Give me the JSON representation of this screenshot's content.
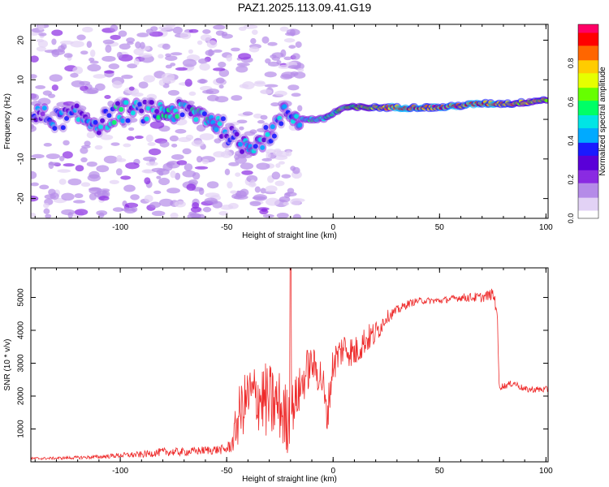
{
  "title": "PAZ1.2025.113.09.41.G19",
  "spectrogram": {
    "type": "heatmap",
    "xlabel": "Height of straight line (km)",
    "ylabel": "Frequency (Hz)",
    "xlim": [
      -142,
      101
    ],
    "ylim": [
      -25,
      24
    ],
    "xticks": [
      -100,
      -50,
      0,
      50,
      100
    ],
    "yticks": [
      -20,
      -10,
      0,
      10,
      20
    ],
    "colorbar_label": "Normalized spectral amplitude",
    "colorbar_ticks": [
      "0.0",
      "0.2",
      "0.4",
      "0.6",
      "0.8"
    ],
    "colorbar_tick_values": [
      0.0,
      0.2,
      0.4,
      0.6,
      0.8
    ],
    "colormap": [
      "#ffffff",
      "#e2d2f5",
      "#b58be8",
      "#8a2be2",
      "#5a00d8",
      "#1a1aff",
      "#00aaff",
      "#00e5e5",
      "#00ff66",
      "#66ff00",
      "#e6ff00",
      "#ffcc00",
      "#ff6600",
      "#ff0000",
      "#ff0066"
    ],
    "ridge": [
      {
        "x": -140,
        "y": 1,
        "a": 0.35
      },
      {
        "x": -130,
        "y": 0,
        "a": 0.4
      },
      {
        "x": -120,
        "y": 1,
        "a": 0.45
      },
      {
        "x": -110,
        "y": -1,
        "a": 0.45
      },
      {
        "x": -100,
        "y": 2,
        "a": 0.5
      },
      {
        "x": -90,
        "y": 2,
        "a": 0.45
      },
      {
        "x": -80,
        "y": 2,
        "a": 0.5
      },
      {
        "x": -70,
        "y": 2,
        "a": 0.5
      },
      {
        "x": -60,
        "y": 1,
        "a": 0.5
      },
      {
        "x": -52,
        "y": -2,
        "a": 0.5
      },
      {
        "x": -45,
        "y": -6,
        "a": 0.45
      },
      {
        "x": -38,
        "y": -6,
        "a": 0.5
      },
      {
        "x": -30,
        "y": -4,
        "a": 0.45
      },
      {
        "x": -22,
        "y": 2,
        "a": 0.4
      },
      {
        "x": -15,
        "y": 0,
        "a": 0.5
      },
      {
        "x": -5,
        "y": 0,
        "a": 0.6
      },
      {
        "x": 5,
        "y": 3,
        "a": 0.6
      },
      {
        "x": 15,
        "y": 3,
        "a": 0.7
      },
      {
        "x": 30,
        "y": 3,
        "a": 0.9
      },
      {
        "x": 50,
        "y": 3,
        "a": 0.95
      },
      {
        "x": 70,
        "y": 4,
        "a": 0.9
      },
      {
        "x": 85,
        "y": 4,
        "a": 0.8
      },
      {
        "x": 100,
        "y": 5,
        "a": 0.75
      }
    ]
  },
  "snr": {
    "type": "line",
    "xlabel": "Height of straight line (km)",
    "ylabel": "SNR (10 * v/v)",
    "xlim": [
      -142,
      101
    ],
    "ylim": [
      0,
      5900
    ],
    "xticks": [
      -100,
      -50,
      0,
      50,
      100
    ],
    "yticks": [
      1000,
      2000,
      3000,
      4000,
      5000
    ],
    "color": "#ee2a2a",
    "x": [
      -142,
      -130,
      -120,
      -110,
      -100,
      -90,
      -80,
      -70,
      -60,
      -50,
      -47,
      -45,
      -40,
      -35,
      -30,
      -25,
      -22,
      -20,
      -15,
      -12,
      -10,
      -5,
      -3,
      0,
      5,
      10,
      15,
      20,
      25,
      30,
      35,
      40,
      50,
      55,
      60,
      65,
      70,
      75,
      77,
      78,
      80,
      85,
      90,
      95,
      100
    ],
    "y": [
      100,
      110,
      130,
      150,
      200,
      220,
      300,
      300,
      350,
      380,
      600,
      1300,
      2000,
      2000,
      1800,
      1700,
      1200,
      1500,
      2300,
      2800,
      3000,
      2500,
      1300,
      3000,
      3500,
      3300,
      3700,
      3900,
      4400,
      4600,
      4800,
      4900,
      4900,
      4950,
      5000,
      5000,
      5000,
      5100,
      4700,
      2300,
      2300,
      2400,
      2200,
      2200,
      2200
    ],
    "noise": [
      40,
      40,
      50,
      60,
      80,
      100,
      130,
      120,
      130,
      150,
      300,
      900,
      900,
      1100,
      1200,
      1100,
      1200,
      800,
      700,
      700,
      500,
      700,
      600,
      600,
      500,
      500,
      450,
      400,
      200,
      150,
      120,
      100,
      100,
      100,
      120,
      150,
      150,
      180,
      300,
      120,
      100,
      100,
      100,
      100,
      100
    ],
    "spike": {
      "x": -20,
      "y": 5900
    }
  }
}
